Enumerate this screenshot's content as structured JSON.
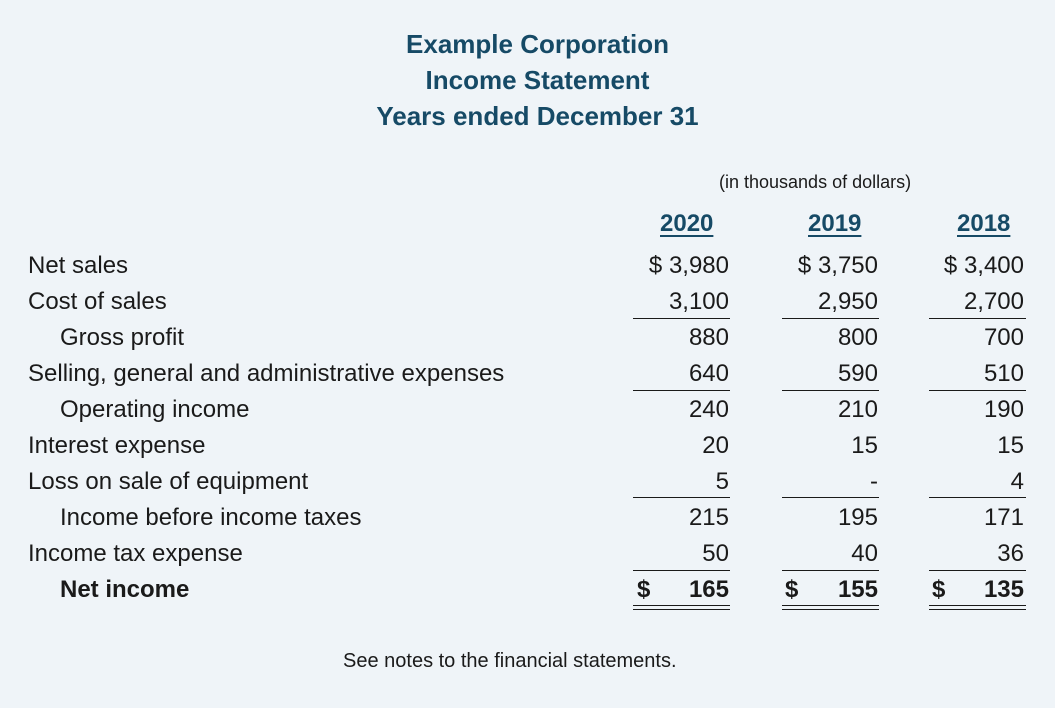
{
  "header": {
    "company": "Example Corporation",
    "statement": "Income Statement",
    "period": "Years ended December 31",
    "units": "(in thousands of dollars)"
  },
  "years": [
    "2020",
    "2019",
    "2018"
  ],
  "rows": [
    {
      "label": "Net sales",
      "values": [
        "$ 3,980",
        "$ 3,750",
        "$ 3,400"
      ]
    },
    {
      "label": "Cost of sales",
      "values": [
        "3,100",
        "2,950",
        "2,700"
      ]
    },
    {
      "label": "Gross profit",
      "values": [
        "880",
        "800",
        "700"
      ]
    },
    {
      "label": "Selling, general and administrative expenses",
      "values": [
        "640",
        "590",
        "510"
      ]
    },
    {
      "label": "Operating income",
      "values": [
        "240",
        "210",
        "190"
      ]
    },
    {
      "label": "Interest expense",
      "values": [
        "20",
        "15",
        "15"
      ]
    },
    {
      "label": "Loss on sale of equipment",
      "values": [
        "5",
        "-",
        "4"
      ]
    },
    {
      "label": "Income before income taxes",
      "values": [
        "215",
        "195",
        "171"
      ]
    },
    {
      "label": "Income tax expense",
      "values": [
        "50",
        "40",
        "36"
      ]
    },
    {
      "label": "Net income",
      "currency": "$",
      "values": [
        "165",
        "155",
        "135"
      ]
    }
  ],
  "footnote": "See notes to the financial statements.",
  "colors": {
    "background": "#eff4f8",
    "heading": "#164a66",
    "text": "#1a1a1a"
  }
}
